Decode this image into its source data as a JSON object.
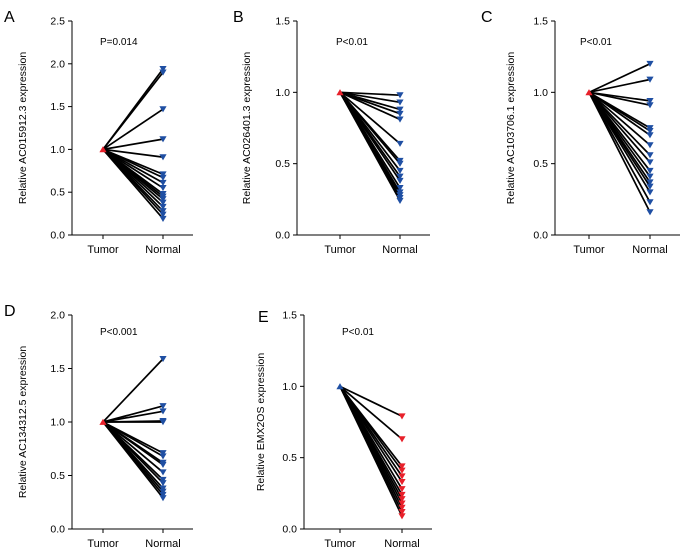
{
  "colors": {
    "blue": "#1f4fa3",
    "red": "#e8202a",
    "axis": "#000000",
    "line": "#000000"
  },
  "chart_data": [
    {
      "type": "line",
      "panel": "A",
      "pvalue": "P=0.014",
      "ylabel": "Relative AC015912.3 expression",
      "categories": [
        "Tumor",
        "Normal"
      ],
      "ylim": [
        0,
        2.5
      ],
      "yticks": [
        "0.0",
        "0.5",
        "1.0",
        "1.5",
        "2.0",
        "2.5"
      ],
      "tumor_value": 1.0,
      "tumor_color": "red",
      "normal_color": "blue",
      "normal_values": [
        1.94,
        1.9,
        1.47,
        1.12,
        0.91,
        0.71,
        0.67,
        0.61,
        0.55,
        0.48,
        0.45,
        0.42,
        0.38,
        0.33,
        0.28,
        0.24,
        0.19
      ]
    },
    {
      "type": "line",
      "panel": "B",
      "pvalue": "P<0.01",
      "ylabel": "Relative AC026401.3 expression",
      "categories": [
        "Tumor",
        "Normal"
      ],
      "ylim": [
        0,
        1.5
      ],
      "yticks": [
        "0.0",
        "0.5",
        "1.0",
        "1.5"
      ],
      "tumor_value": 1.0,
      "tumor_color": "red",
      "normal_color": "blue",
      "normal_values": [
        0.98,
        0.93,
        0.88,
        0.85,
        0.81,
        0.64,
        0.52,
        0.5,
        0.45,
        0.41,
        0.38,
        0.33,
        0.3,
        0.28,
        0.26,
        0.24
      ]
    },
    {
      "type": "line",
      "panel": "C",
      "pvalue": "P<0.01",
      "ylabel": "Relative AC103706.1 expression",
      "categories": [
        "Tumor",
        "Normal"
      ],
      "ylim": [
        0,
        1.5
      ],
      "yticks": [
        "0.0",
        "0.5",
        "1.0",
        "1.5"
      ],
      "tumor_value": 1.0,
      "tumor_color": "red",
      "normal_color": "blue",
      "normal_values": [
        1.2,
        1.09,
        0.94,
        0.91,
        0.75,
        0.73,
        0.7,
        0.63,
        0.56,
        0.51,
        0.45,
        0.41,
        0.37,
        0.34,
        0.3,
        0.23,
        0.16
      ]
    },
    {
      "type": "line",
      "panel": "D",
      "pvalue": "P<0.001",
      "ylabel": "Relative AC134312.5 expression",
      "categories": [
        "Tumor",
        "Normal"
      ],
      "ylim": [
        0,
        2.0
      ],
      "yticks": [
        "0.0",
        "0.5",
        "1.0",
        "1.5",
        "2.0"
      ],
      "tumor_value": 1.0,
      "tumor_color": "red",
      "normal_color": "blue",
      "normal_values": [
        1.59,
        1.15,
        1.1,
        1.01,
        1.0,
        0.71,
        0.68,
        0.62,
        0.6,
        0.53,
        0.46,
        0.43,
        0.38,
        0.35,
        0.32,
        0.29
      ]
    },
    {
      "type": "line",
      "panel": "E",
      "pvalue": "P<0.01",
      "ylabel": "Relative EMX2OS expression",
      "categories": [
        "Tumor",
        "Normal"
      ],
      "ylim": [
        0,
        1.5
      ],
      "yticks": [
        "0.0",
        "0.5",
        "1.0",
        "1.5"
      ],
      "tumor_value": 1.0,
      "tumor_color": "blue",
      "normal_color": "red",
      "normal_values": [
        0.79,
        0.63,
        0.44,
        0.41,
        0.37,
        0.33,
        0.28,
        0.24,
        0.21,
        0.18,
        0.15,
        0.12,
        0.09
      ]
    }
  ]
}
